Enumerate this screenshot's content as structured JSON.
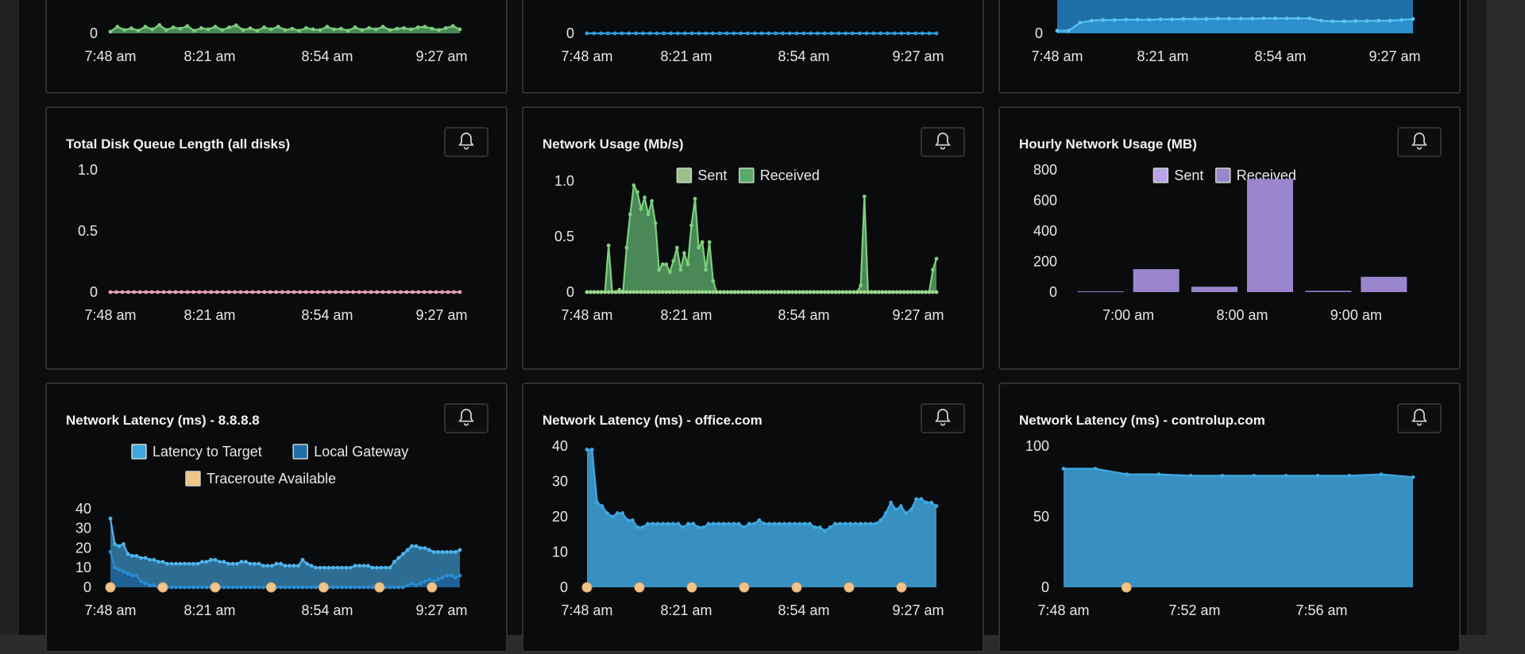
{
  "icons": {
    "alert": "bell-icon"
  },
  "colors": {
    "background": "#0a0b0d",
    "green": "#78c078",
    "blue": "#2e9ee0",
    "pink": "#e9a0b8",
    "purple": "#a68fdc",
    "latency_fill": "#3c9ed0",
    "traceroute": "#f0c48a"
  },
  "cards": [
    {
      "id": "top-left",
      "title": "",
      "alert_button": false,
      "chart_data": {
        "type": "area",
        "x_ticks": [
          "7:48 am",
          "8:21 am",
          "8:54 am",
          "9:27 am"
        ],
        "y_ticks": [
          "0"
        ],
        "ylim": [
          0,
          1
        ],
        "series": [
          {
            "color": "#78c078",
            "values": [
              0.05,
              0.2,
              0.1,
              0.15,
              0.08,
              0.2,
              0.12,
              0.25,
              0.1,
              0.18,
              0.14,
              0.22,
              0.08,
              0.16,
              0.12,
              0.2,
              0.1,
              0.18,
              0.24,
              0.1,
              0.15,
              0.08,
              0.18,
              0.12,
              0.2,
              0.1,
              0.14,
              0.08,
              0.16,
              0.12,
              0.1,
              0.2,
              0.12,
              0.14,
              0.08,
              0.18,
              0.1,
              0.16,
              0.12,
              0.2,
              0.1,
              0.14,
              0.16,
              0.12,
              0.18,
              0.2,
              0.14,
              0.1,
              0.16,
              0.22,
              0.12
            ]
          }
        ]
      }
    },
    {
      "id": "top-middle",
      "title": "",
      "alert_button": false,
      "chart_data": {
        "type": "line",
        "x_ticks": [
          "7:48 am",
          "8:21 am",
          "8:54 am",
          "9:27 am"
        ],
        "y_ticks": [
          "0"
        ],
        "ylim": [
          0,
          1
        ],
        "series": [
          {
            "color": "#2e9ee0",
            "values": [
              0,
              0,
              0,
              0,
              0,
              0,
              0,
              0,
              0,
              0,
              0,
              0,
              0,
              0,
              0,
              0,
              0,
              0,
              0,
              0,
              0,
              0,
              0,
              0,
              0,
              0,
              0,
              0,
              0,
              0,
              0,
              0,
              0,
              0,
              0,
              0,
              0,
              0,
              0,
              0,
              0,
              0,
              0,
              0,
              0,
              0,
              0,
              0,
              0,
              0,
              0
            ]
          }
        ]
      }
    },
    {
      "id": "top-right",
      "title": "",
      "alert_button": false,
      "chart_data": {
        "type": "area",
        "x_ticks": [
          "7:48 am",
          "8:21 am",
          "8:54 am",
          "9:27 am"
        ],
        "y_ticks": [
          "0"
        ],
        "ylim": [
          0,
          100
        ],
        "series": [
          {
            "color": "#1f6fa8",
            "values": [
              100,
              100,
              100,
              100,
              100,
              100,
              100,
              100,
              100,
              100,
              100,
              100,
              100,
              100,
              100,
              100,
              100,
              100,
              100,
              100,
              100,
              100,
              100,
              100,
              100,
              100,
              100,
              100,
              100,
              100,
              100,
              100
            ]
          },
          {
            "color": "#42b0e8",
            "values": [
              8,
              8,
              32,
              38,
              40,
              40,
              41,
              41,
              41,
              42,
              42,
              43,
              43,
              43,
              44,
              44,
              44,
              44,
              45,
              45,
              45,
              45,
              45,
              38,
              36,
              36,
              37,
              37,
              38,
              38,
              40,
              43
            ]
          }
        ]
      }
    },
    {
      "id": "disk-queue",
      "title": "Total Disk Queue Length (all disks)",
      "alert_button": true,
      "chart_data": {
        "type": "line",
        "title": "Total Disk Queue Length (all disks)",
        "x_ticks": [
          "7:48 am",
          "8:21 am",
          "8:54 am",
          "9:27 am"
        ],
        "y_ticks": [
          "0",
          "0.5",
          "1.0"
        ],
        "ylim": [
          0,
          1
        ],
        "series": [
          {
            "color": "#e9a0b8",
            "values": [
              0,
              0,
              0,
              0,
              0,
              0,
              0,
              0,
              0,
              0,
              0,
              0,
              0,
              0,
              0,
              0,
              0,
              0,
              0,
              0,
              0,
              0,
              0,
              0,
              0,
              0,
              0,
              0,
              0,
              0,
              0,
              0,
              0,
              0,
              0,
              0,
              0,
              0,
              0,
              0,
              0,
              0,
              0,
              0,
              0,
              0,
              0,
              0,
              0,
              0,
              0,
              0,
              0,
              0,
              0,
              0,
              0,
              0,
              0,
              0
            ]
          }
        ]
      }
    },
    {
      "id": "network-usage",
      "title": "Network Usage (Mb/s)",
      "alert_button": true,
      "chart_data": {
        "type": "area",
        "title": "Network Usage (Mb/s)",
        "x_ticks": [
          "7:48 am",
          "8:21 am",
          "8:54 am",
          "9:27 am"
        ],
        "y_ticks": [
          "0",
          "0.5",
          "1.0"
        ],
        "ylim": [
          0,
          1.1
        ],
        "legend": [
          {
            "label": "Sent",
            "color": "#9dbf8a"
          },
          {
            "label": "Received",
            "color": "#5aa86a"
          }
        ],
        "series": [
          {
            "name": "Received",
            "color": "#5aa86a",
            "values": [
              0,
              0,
              0,
              0,
              0,
              0,
              0.42,
              0,
              0,
              0.02,
              0,
              0.4,
              0.7,
              0.96,
              0.9,
              0.75,
              0.85,
              0.7,
              0.82,
              0.62,
              0.2,
              0.25,
              0.25,
              0.18,
              0.28,
              0.4,
              0.2,
              0.35,
              0.25,
              0.6,
              0.84,
              0.4,
              0.45,
              0.2,
              0.45,
              0.1,
              0,
              0,
              0,
              0,
              0,
              0,
              0,
              0,
              0,
              0,
              0,
              0,
              0,
              0,
              0,
              0,
              0,
              0,
              0,
              0,
              0,
              0,
              0,
              0,
              0,
              0,
              0,
              0,
              0,
              0,
              0,
              0,
              0,
              0,
              0,
              0,
              0,
              0,
              0,
              0,
              0.06,
              0.86,
              0,
              0,
              0,
              0,
              0,
              0,
              0,
              0,
              0,
              0,
              0,
              0,
              0,
              0,
              0,
              0,
              0,
              0,
              0.2,
              0.3
            ]
          },
          {
            "name": "Sent",
            "color": "#9dbf8a",
            "values": [
              0,
              0,
              0,
              0,
              0,
              0,
              0,
              0,
              0,
              0,
              0,
              0,
              0,
              0,
              0,
              0,
              0,
              0,
              0,
              0,
              0,
              0,
              0,
              0,
              0,
              0,
              0,
              0,
              0,
              0,
              0,
              0,
              0,
              0,
              0,
              0,
              0,
              0,
              0,
              0,
              0,
              0,
              0,
              0,
              0,
              0,
              0,
              0,
              0,
              0,
              0,
              0,
              0,
              0,
              0,
              0,
              0,
              0,
              0,
              0,
              0,
              0,
              0,
              0,
              0,
              0,
              0,
              0,
              0,
              0,
              0,
              0,
              0,
              0,
              0,
              0,
              0,
              0,
              0,
              0,
              0,
              0,
              0,
              0,
              0,
              0,
              0,
              0,
              0,
              0,
              0,
              0,
              0,
              0,
              0,
              0,
              0,
              0
            ]
          }
        ]
      }
    },
    {
      "id": "hourly-network-usage",
      "title": "Hourly Network Usage (MB)",
      "alert_button": true,
      "chart_data": {
        "type": "bar",
        "title": "Hourly Network Usage (MB)",
        "categories": [
          "7:00 am",
          "8:00 am",
          "9:00 am"
        ],
        "y_ticks": [
          "0",
          "200",
          "400",
          "600",
          "800"
        ],
        "ylim": [
          0,
          800
        ],
        "legend": [
          {
            "label": "Sent",
            "color": "#b9a4ec"
          },
          {
            "label": "Received",
            "color": "#9a86cc"
          }
        ],
        "series": [
          {
            "name": "Sent",
            "color": "#9a86cc",
            "values": [
              5,
              35,
              8
            ]
          },
          {
            "name": "Received",
            "color": "#9a86cc",
            "values": [
              150,
              740,
              100
            ]
          }
        ]
      }
    },
    {
      "id": "latency-8888",
      "title": "Network Latency (ms) - 8.8.8.8",
      "alert_button": true,
      "chart_data": {
        "type": "area",
        "title": "Network Latency (ms) - 8.8.8.8",
        "x_ticks": [
          "7:48 am",
          "8:21 am",
          "8:54 am",
          "9:27 am"
        ],
        "y_ticks": [
          "0",
          "10",
          "20",
          "30",
          "40"
        ],
        "ylim": [
          0,
          42
        ],
        "legend": [
          {
            "label": "Latency to Target",
            "color": "#3fa8e0"
          },
          {
            "label": "Local Gateway",
            "color": "#1f6fa8"
          },
          {
            "label": "Traceroute Available",
            "color": "#f0c48a"
          }
        ],
        "series": [
          {
            "name": "Latency to Target",
            "color": "#3fa8e0",
            "values": [
              35,
              22,
              21,
              22,
              17,
              16,
              16,
              15,
              15,
              14,
              14,
              13,
              13,
              12,
              12,
              12,
              12,
              12,
              12,
              12,
              12,
              13,
              13,
              14,
              14,
              13,
              13,
              12,
              12,
              12,
              13,
              13,
              12,
              12,
              12,
              11,
              11,
              11,
              12,
              12,
              11,
              11,
              11,
              11,
              14,
              12,
              11,
              10,
              10,
              10,
              10,
              10,
              10,
              10,
              10,
              10,
              11,
              11,
              11,
              11,
              10,
              10,
              10,
              10,
              10,
              13,
              15,
              17,
              19,
              21,
              21,
              20,
              20,
              19,
              18,
              18,
              18,
              18,
              18,
              18,
              19
            ]
          },
          {
            "name": "Local Gateway",
            "color": "#1f6fa8",
            "values": [
              18,
              10,
              9,
              8,
              7,
              6,
              6,
              3,
              2,
              1,
              1,
              0,
              0,
              0,
              0,
              0,
              0,
              0,
              0,
              0,
              0,
              0,
              0,
              0,
              0,
              0,
              0,
              0,
              0,
              0,
              0,
              0,
              0,
              0,
              0,
              0,
              0,
              0,
              0,
              0,
              0,
              0,
              0,
              0,
              0,
              0,
              0,
              0,
              0,
              0,
              0,
              0,
              0,
              0,
              0,
              0,
              0,
              0,
              0,
              0,
              0,
              0,
              0,
              0,
              0,
              0,
              0,
              0,
              1,
              2,
              1,
              2,
              3,
              4,
              3,
              4,
              5,
              6,
              6,
              5,
              6
            ]
          }
        ],
        "traceroute": [
          0,
          0.15,
          0.3,
          0.46,
          0.61,
          0.77,
          0.92
        ]
      }
    },
    {
      "id": "latency-office",
      "title": "Network Latency (ms) - office.com",
      "alert_button": true,
      "chart_data": {
        "type": "area",
        "title": "Network Latency (ms) - office.com",
        "x_ticks": [
          "7:48 am",
          "8:21 am",
          "8:54 am",
          "9:27 am"
        ],
        "y_ticks": [
          "0",
          "10",
          "20",
          "30",
          "40"
        ],
        "ylim": [
          0,
          40
        ],
        "series": [
          {
            "name": "Latency",
            "color": "#3fa8e0",
            "values": [
              39,
              39,
              24,
              23,
              21,
              20,
              21,
              21,
              19,
              19,
              17,
              17,
              18,
              18,
              18,
              18,
              18,
              18,
              18,
              17,
              18,
              18,
              17,
              17,
              18,
              18,
              18,
              18,
              18,
              18,
              18,
              17,
              18,
              18,
              19,
              18,
              18,
              18,
              18,
              18,
              18,
              18,
              18,
              18,
              18,
              17,
              17,
              16,
              17,
              18,
              18,
              18,
              18,
              18,
              18,
              18,
              18,
              18,
              19,
              21,
              24,
              22,
              23,
              21,
              22,
              25,
              25,
              24,
              24,
              23
            ]
          }
        ],
        "traceroute": [
          0,
          0.15,
          0.3,
          0.45,
          0.6,
          0.75,
          0.9
        ]
      }
    },
    {
      "id": "latency-controlup",
      "title": "Network Latency (ms) - controlup.com",
      "alert_button": true,
      "chart_data": {
        "type": "area",
        "title": "Network Latency (ms) - controlup.com",
        "x_ticks": [
          "7:48 am",
          "7:52 am",
          "7:56 am"
        ],
        "y_ticks": [
          "0",
          "50",
          "100"
        ],
        "ylim": [
          0,
          100
        ],
        "series": [
          {
            "name": "Latency",
            "color": "#3fa8e0",
            "values": [
              84,
              84,
              80,
              80,
              79,
              79,
              79,
              79,
              79,
              79,
              80,
              78
            ]
          }
        ],
        "traceroute": [
          0.18
        ]
      }
    }
  ]
}
